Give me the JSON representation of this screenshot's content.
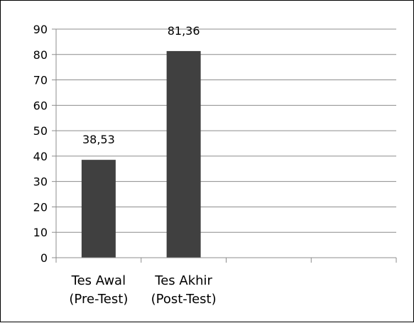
{
  "chart_data": {
    "type": "bar",
    "categories": [
      [
        "Tes Awal",
        "(Pre-Test)"
      ],
      [
        "Tes Akhir",
        "(Post-Test)"
      ],
      [
        "",
        ""
      ],
      [
        "",
        ""
      ]
    ],
    "values": [
      38.53,
      81.36,
      null,
      null
    ],
    "data_labels": [
      "38,53",
      "81,36",
      "",
      ""
    ],
    "yticks": [
      "0",
      "10",
      "20",
      "30",
      "40",
      "50",
      "60",
      "70",
      "80",
      "90"
    ],
    "ylim": [
      0,
      90
    ],
    "grid": true,
    "legend": "none",
    "colors": {
      "bar": "#404040",
      "grid": "#8c8c8c",
      "axis": "#8c8c8c",
      "frame": "#000000"
    }
  }
}
